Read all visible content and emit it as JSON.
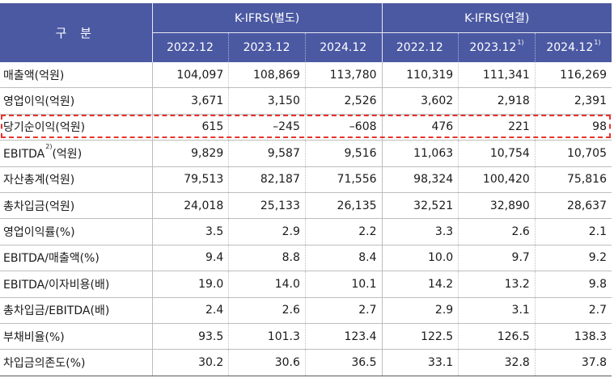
{
  "table": {
    "label_header": "구 분",
    "groups": [
      "K-IFRS(별도)",
      "K-IFRS(연결)"
    ],
    "years": [
      {
        "text": "2022.12",
        "note": ""
      },
      {
        "text": "2023.12",
        "note": ""
      },
      {
        "text": "2024.12",
        "note": ""
      },
      {
        "text": "2022.12",
        "note": ""
      },
      {
        "text": "2023.12",
        "note": "1)"
      },
      {
        "text": "2024.12",
        "note": "1)"
      }
    ],
    "rows": [
      {
        "label": "매출액(억원)",
        "label_note": "",
        "label_suffix": "",
        "values": [
          "104,097",
          "108,869",
          "113,780",
          "110,319",
          "111,341",
          "116,269"
        ]
      },
      {
        "label": "영업이익(억원)",
        "label_note": "",
        "label_suffix": "",
        "values": [
          "3,671",
          "3,150",
          "2,526",
          "3,602",
          "2,918",
          "2,391"
        ]
      },
      {
        "label": "당기순이익(억원)",
        "label_note": "",
        "label_suffix": "",
        "values": [
          "615",
          "–245",
          "–608",
          "476",
          "221",
          "98"
        ]
      },
      {
        "label": "EBITDA",
        "label_note": "2)",
        "label_suffix": "(억원)",
        "values": [
          "9,829",
          "9,587",
          "9,516",
          "11,063",
          "10,754",
          "10,705"
        ]
      },
      {
        "label": "자산총계(억원)",
        "label_note": "",
        "label_suffix": "",
        "values": [
          "79,513",
          "82,187",
          "71,556",
          "98,324",
          "100,420",
          "75,816"
        ]
      },
      {
        "label": "총차입금(억원)",
        "label_note": "",
        "label_suffix": "",
        "values": [
          "24,018",
          "25,133",
          "26,135",
          "32,521",
          "32,890",
          "28,637"
        ]
      },
      {
        "label": "영업이익률(%)",
        "label_note": "",
        "label_suffix": "",
        "values": [
          "3.5",
          "2.9",
          "2.2",
          "3.3",
          "2.6",
          "2.1"
        ]
      },
      {
        "label": "EBITDA/매출액(%)",
        "label_note": "",
        "label_suffix": "",
        "values": [
          "9.4",
          "8.8",
          "8.4",
          "10.0",
          "9.7",
          "9.2"
        ]
      },
      {
        "label": "EBITDA/이자비용(배)",
        "label_note": "",
        "label_suffix": "",
        "values": [
          "19.0",
          "14.0",
          "10.1",
          "14.2",
          "13.2",
          "9.8"
        ]
      },
      {
        "label": "총차입금/EBITDA(배)",
        "label_note": "",
        "label_suffix": "",
        "values": [
          "2.4",
          "2.6",
          "2.7",
          "2.9",
          "3.1",
          "2.7"
        ]
      },
      {
        "label": "부채비율(%)",
        "label_note": "",
        "label_suffix": "",
        "values": [
          "93.5",
          "101.3",
          "123.4",
          "122.5",
          "126.5",
          "138.3"
        ]
      },
      {
        "label": "차입금의존도(%)",
        "label_note": "",
        "label_suffix": "",
        "values": [
          "30.2",
          "30.6",
          "36.5",
          "33.1",
          "32.8",
          "37.8"
        ]
      }
    ],
    "highlighted_row": "당기순이익(억원)"
  },
  "colors": {
    "header_bg": "#4b59a3",
    "header_text": "#ffffff",
    "highlight_border": "#e8332f",
    "row_border": "#bdbdbd"
  }
}
